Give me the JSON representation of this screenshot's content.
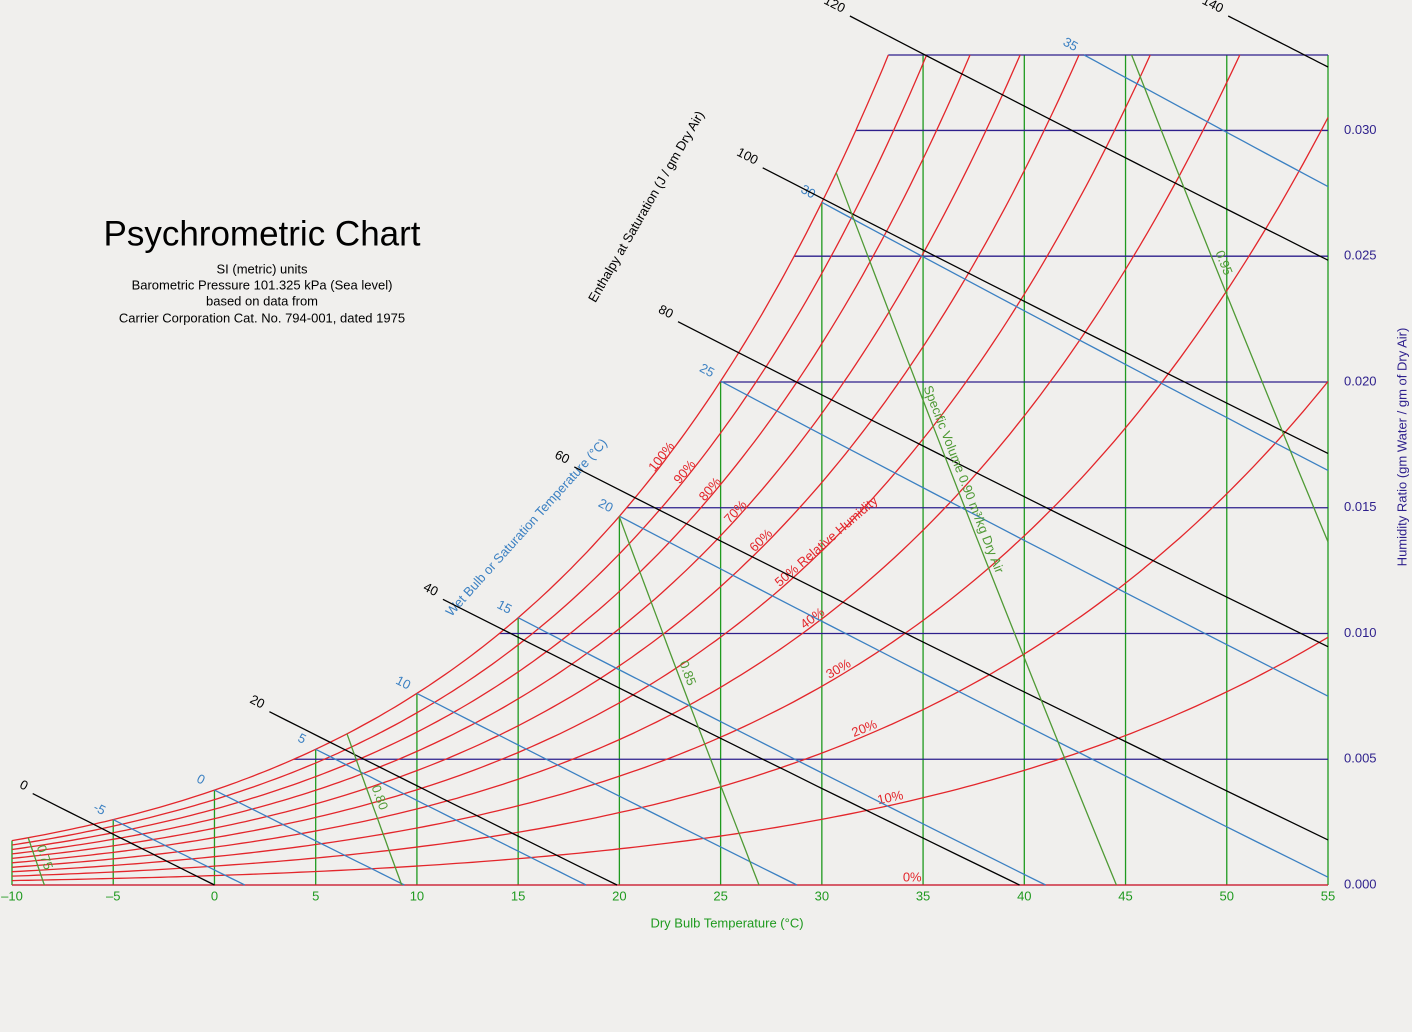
{
  "chart_data": {
    "type": "psychrometric",
    "title": "Psychrometric Chart",
    "subtitle": [
      "SI (metric) units",
      "Barometric Pressure 101.325 kPa (Sea level)",
      "based on data from",
      "Carrier Corporation Cat. No. 794-001, dated 1975"
    ],
    "pressure_kpa": 101.325,
    "x_label": "Dry Bulb Temperature (°C)",
    "y_label": "Humidity Ratio (gm Water / gm of Dry Air)",
    "xlim": [
      -10,
      55
    ],
    "xticks": [
      {
        "value": -10,
        "label": "–10"
      },
      {
        "value": -5,
        "label": "–5"
      },
      0,
      5,
      10,
      15,
      20,
      25,
      30,
      35,
      40,
      45,
      50,
      55
    ],
    "ylim": [
      0,
      0.033
    ],
    "yticks": [
      {
        "value": 0,
        "label": "0.000"
      },
      {
        "value": 0.005,
        "label": "0.005"
      },
      {
        "value": 0.01,
        "label": "0.010"
      },
      {
        "value": 0.015,
        "label": "0.015"
      },
      {
        "value": 0.02,
        "label": "0.020"
      },
      {
        "value": 0.025,
        "label": "0.025"
      },
      {
        "value": 0.03,
        "label": "0.030"
      }
    ],
    "grid_colors": {
      "x": "#1f9a1f",
      "y": "#2d1f8c"
    },
    "relative_humidity": {
      "color": "#e3262b",
      "values": [
        0,
        10,
        20,
        30,
        40,
        50,
        60,
        70,
        80,
        90,
        100
      ],
      "value_labels": [
        "0%",
        "10%",
        "20%",
        "30%",
        "40%",
        "50% Relative Humidity",
        "60%",
        "70%",
        "80%",
        "90%",
        "100%"
      ]
    },
    "wet_bulb": {
      "title": "Wet Bulb or Saturation Temperature (°C)",
      "color": "#3b80c2",
      "values": [
        -5,
        0,
        5,
        10,
        15,
        20,
        25,
        30,
        35
      ]
    },
    "enthalpy": {
      "title": "Enthalpy at Saturation (J / gm Dry Air)",
      "color": "#000000",
      "values": [
        0,
        20,
        40,
        60,
        80,
        100,
        120,
        140
      ]
    },
    "specific_volume": {
      "color": "#4f9a35",
      "values": [
        0.75,
        0.8,
        0.85,
        0.9,
        0.95
      ],
      "value_labels": [
        "0.75",
        "0.80",
        "0.85",
        "Specific Volume 0.90 m³/kg Dry Air",
        "0.95"
      ]
    }
  }
}
